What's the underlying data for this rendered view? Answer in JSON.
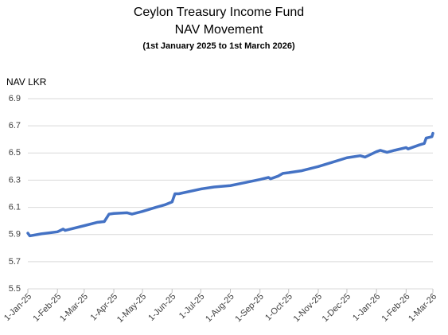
{
  "chart_data": {
    "type": "line",
    "title": "Ceylon Treasury Income Fund",
    "subtitle": "NAV Movement",
    "date_range": "(1st January 2025 to 1st March 2026)",
    "y_label": "NAV LKR",
    "x": [
      "2025-01-01",
      "2025-01-03",
      "2025-01-15",
      "2025-02-01",
      "2025-02-07",
      "2025-02-09",
      "2025-03-01",
      "2025-03-15",
      "2025-03-22",
      "2025-03-27",
      "2025-04-01",
      "2025-04-15",
      "2025-04-20",
      "2025-05-01",
      "2025-05-15",
      "2025-05-25",
      "2025-06-01",
      "2025-06-04",
      "2025-06-08",
      "2025-07-01",
      "2025-07-15",
      "2025-08-01",
      "2025-08-15",
      "2025-09-01",
      "2025-09-10",
      "2025-09-12",
      "2025-09-20",
      "2025-09-25",
      "2025-10-01",
      "2025-10-15",
      "2025-11-01",
      "2025-11-15",
      "2025-12-01",
      "2025-12-15",
      "2025-12-20",
      "2026-01-01",
      "2026-01-05",
      "2026-01-12",
      "2026-01-20",
      "2026-02-01",
      "2026-02-03",
      "2026-02-15",
      "2026-02-20",
      "2026-02-22",
      "2026-02-25",
      "2026-02-28",
      "2026-03-01"
    ],
    "series": [
      {
        "name": "NAV LKR",
        "color": "#4472c4",
        "values": [
          5.91,
          5.89,
          5.905,
          5.92,
          5.94,
          5.93,
          5.965,
          5.99,
          5.995,
          6.05,
          6.055,
          6.06,
          6.05,
          6.07,
          6.1,
          6.12,
          6.14,
          6.2,
          6.2,
          6.235,
          6.25,
          6.26,
          6.28,
          6.305,
          6.32,
          6.31,
          6.33,
          6.35,
          6.355,
          6.37,
          6.4,
          6.43,
          6.465,
          6.48,
          6.47,
          6.51,
          6.52,
          6.505,
          6.52,
          6.54,
          6.53,
          6.56,
          6.57,
          6.61,
          6.615,
          6.62,
          6.645
        ]
      }
    ],
    "xlim": [
      "2025-01-01",
      "2026-03-01"
    ],
    "xticks": [
      {
        "value": "2025-01-01",
        "label": "1-Jan-25"
      },
      {
        "value": "2025-02-01",
        "label": "1-Feb-25"
      },
      {
        "value": "2025-03-01",
        "label": "1-Mar-25"
      },
      {
        "value": "2025-04-01",
        "label": "1-Apr-25"
      },
      {
        "value": "2025-05-01",
        "label": "1-May-25"
      },
      {
        "value": "2025-06-01",
        "label": "1-Jun-25"
      },
      {
        "value": "2025-07-01",
        "label": "1-Jul-25"
      },
      {
        "value": "2025-08-01",
        "label": "1-Aug-25"
      },
      {
        "value": "2025-09-01",
        "label": "1-Sep-25"
      },
      {
        "value": "2025-10-01",
        "label": "1-Oct-25"
      },
      {
        "value": "2025-11-01",
        "label": "1-Nov-25"
      },
      {
        "value": "2025-12-01",
        "label": "1-Dec-25"
      },
      {
        "value": "2026-01-01",
        "label": "1-Jan-26"
      },
      {
        "value": "2026-02-01",
        "label": "1-Feb-26"
      },
      {
        "value": "2026-03-01",
        "label": "1-Mar-26"
      }
    ],
    "ylim": [
      5.5,
      6.9
    ],
    "yticks": [
      5.5,
      5.7,
      5.9,
      6.1,
      6.3,
      6.5,
      6.7,
      6.9
    ],
    "grid": true
  }
}
